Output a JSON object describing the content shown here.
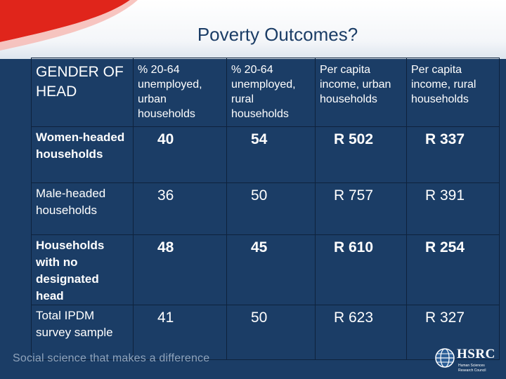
{
  "slide": {
    "title": "Poverty Outcomes?",
    "footer_tagline": "Social science that makes a difference",
    "logo": {
      "name": "HSRC",
      "subtitle_line1": "Human Sciences",
      "subtitle_line2": "Research Council"
    },
    "colors": {
      "background": "#1b3d66",
      "accent_red": "#e0251b",
      "title_text": "#1b3d66"
    }
  },
  "table": {
    "headers": [
      "GENDER OF HEAD",
      "% 20-64 unemployed, urban households",
      "% 20-64 unemployed, rural households",
      "Per capita income, urban households",
      "Per capita income, rural households"
    ],
    "rows": [
      {
        "label": "Women-headed households",
        "values": [
          "40",
          "54",
          "R 502",
          "R 337"
        ]
      },
      {
        "label": "Male-headed households",
        "values": [
          "36",
          "50",
          "R 757",
          "R 391"
        ]
      },
      {
        "label": "Households with no designated head",
        "values": [
          "48",
          "45",
          "R 610",
          "R 254"
        ]
      },
      {
        "label": "Total IPDM survey sample",
        "values": [
          "41",
          "50",
          "R 623",
          "R 327"
        ]
      }
    ]
  }
}
